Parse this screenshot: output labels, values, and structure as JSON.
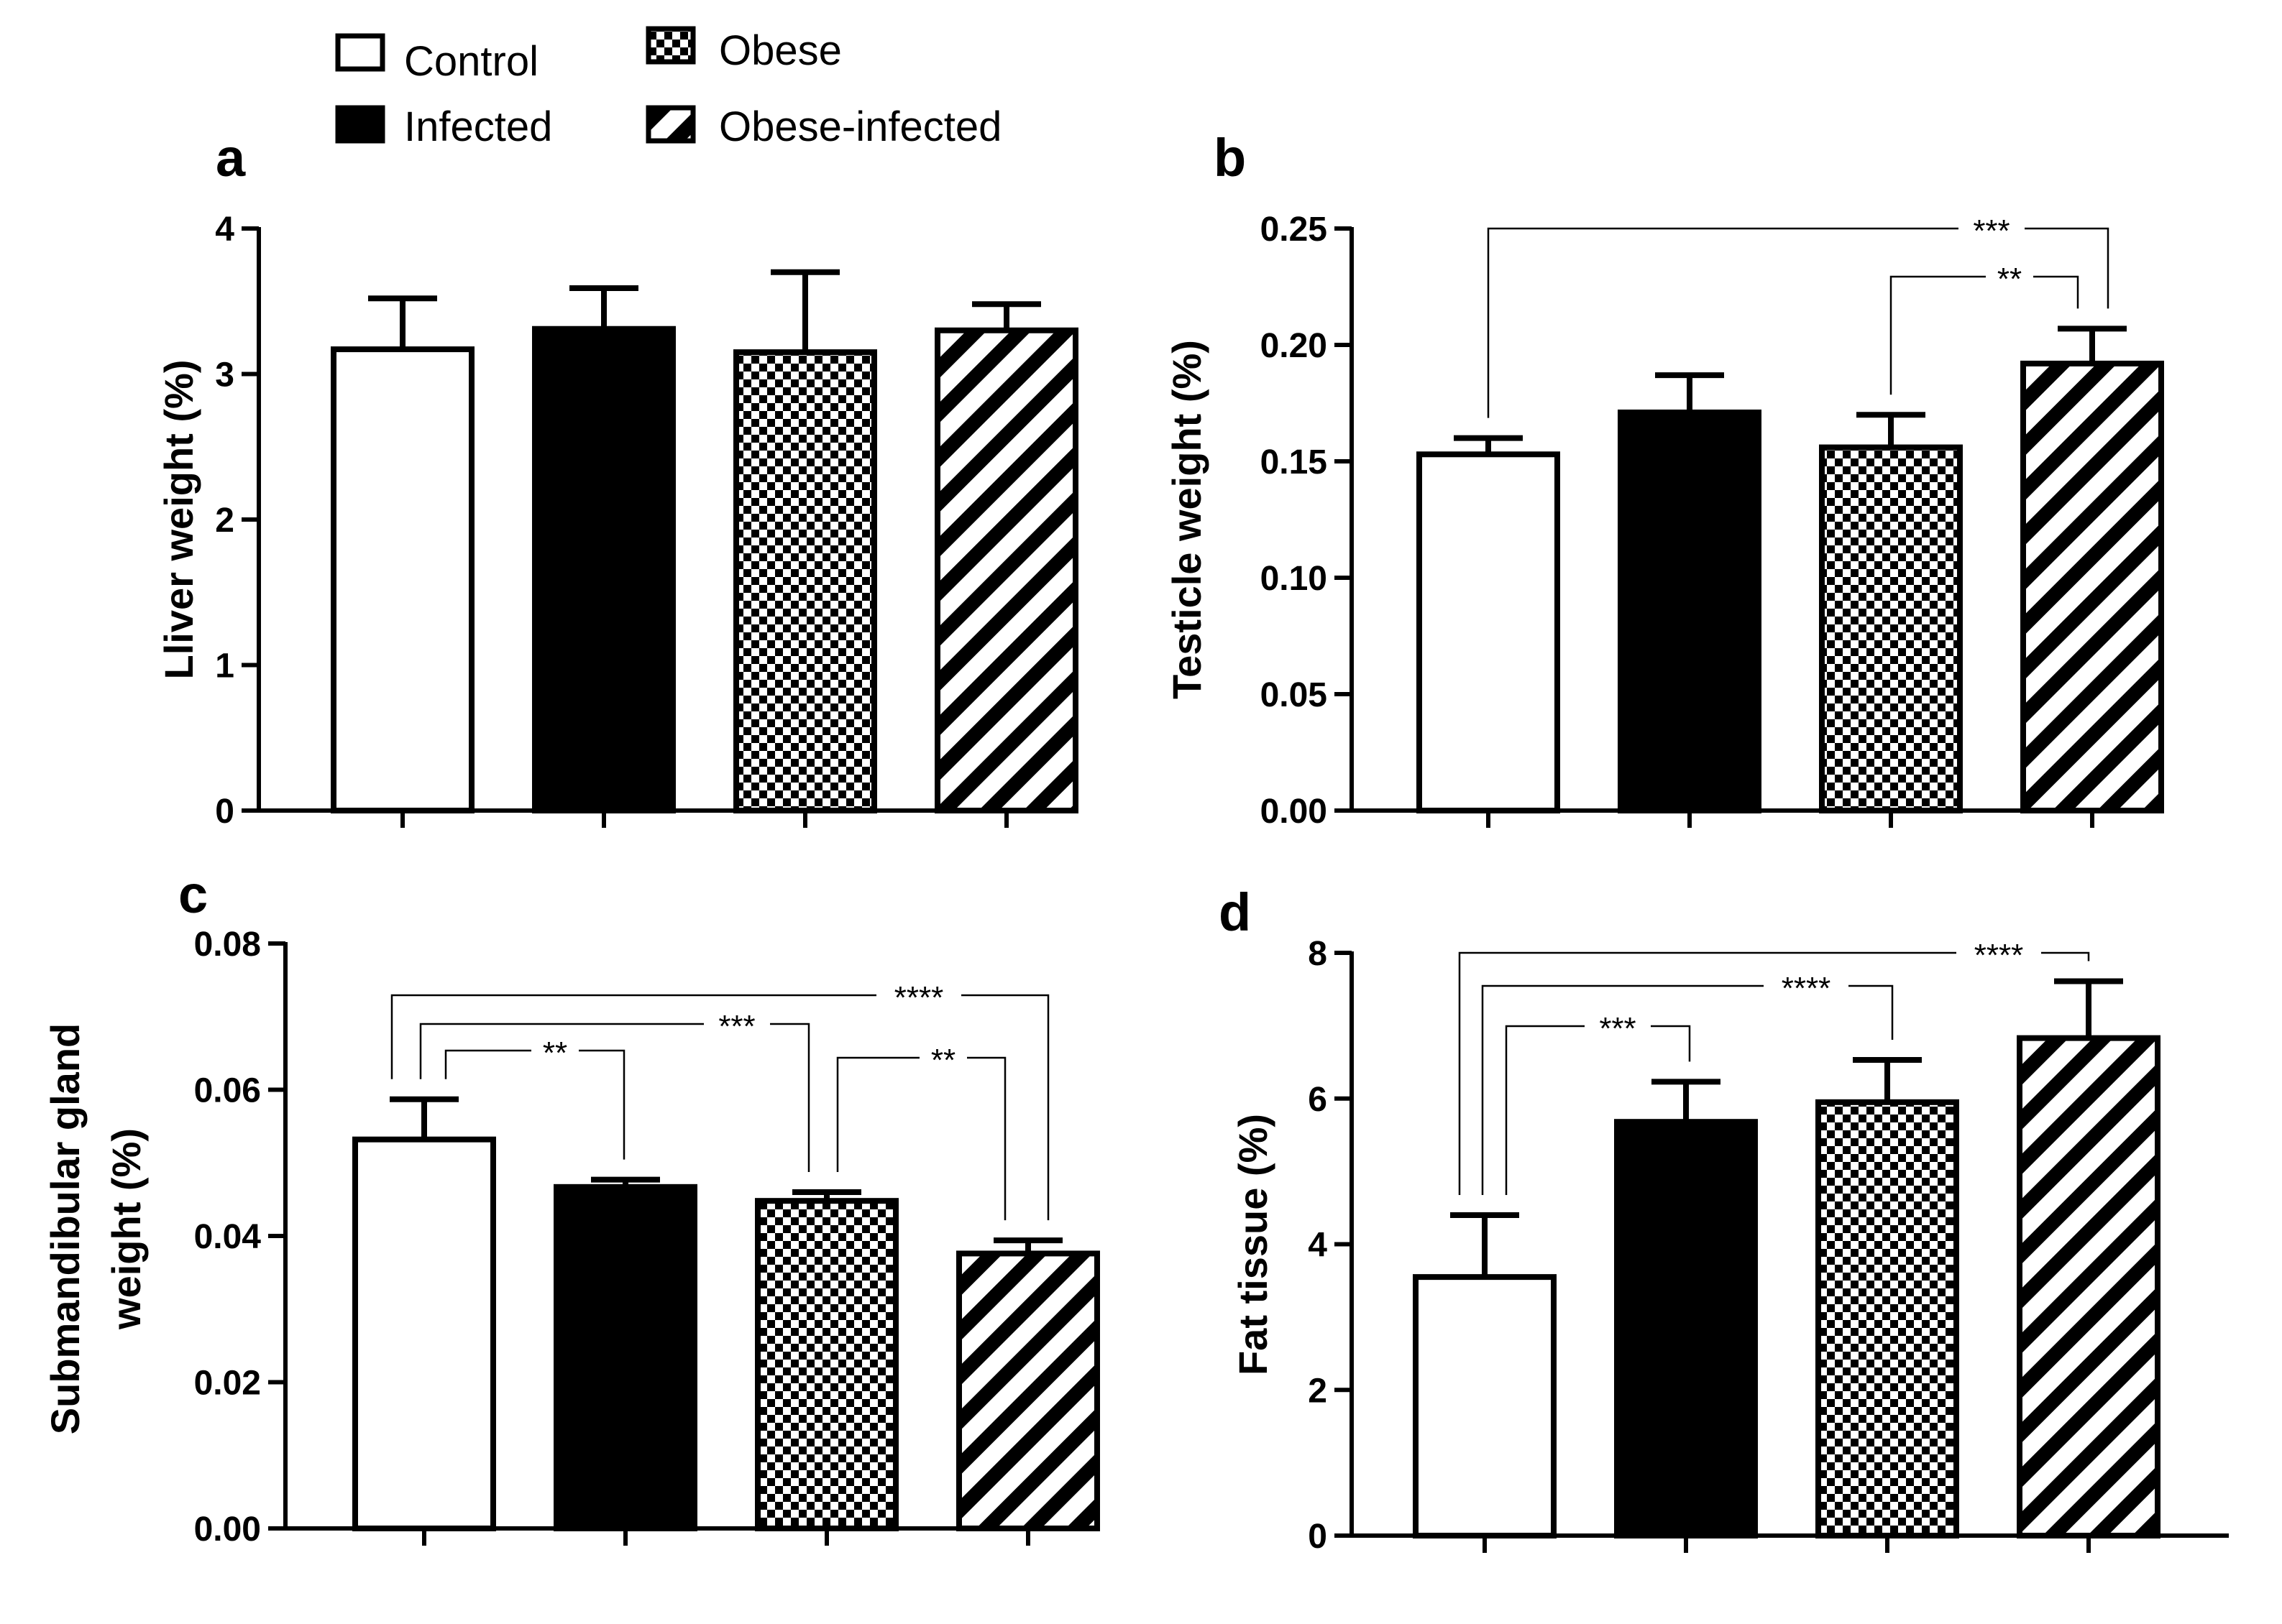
{
  "legend": {
    "entries": [
      {
        "label": "Control",
        "pattern": "white"
      },
      {
        "label": "Infected",
        "pattern": "solid"
      },
      {
        "label": "Obese",
        "pattern": "checker"
      },
      {
        "label": "Obese-infected",
        "pattern": "hatch"
      }
    ]
  },
  "colors": {
    "ink": "#000000",
    "paper": "#ffffff"
  },
  "chart_data": [
    {
      "id": "a",
      "type": "bar",
      "panel_label": "a",
      "title": "",
      "xlabel": "",
      "ylabel": "Lliver weight (%)",
      "categories": [
        "Control",
        "Infected",
        "Obese",
        "Obese-infected"
      ],
      "values": [
        3.17,
        3.31,
        3.15,
        3.3
      ],
      "errors": [
        0.35,
        0.28,
        0.55,
        0.18
      ],
      "ylim": [
        0,
        4
      ],
      "yticks": [
        0,
        1,
        2,
        3,
        4
      ],
      "ytick_labels": [
        "0",
        "1",
        "2",
        "3",
        "4"
      ],
      "grid": false,
      "legend": "top",
      "significance": []
    },
    {
      "id": "b",
      "type": "bar",
      "panel_label": "b",
      "title": "",
      "xlabel": "",
      "ylabel": "Testicle weight (%)",
      "categories": [
        "Control",
        "Infected",
        "Obese",
        "Obese-infected"
      ],
      "values": [
        0.153,
        0.171,
        0.156,
        0.192
      ],
      "errors": [
        0.007,
        0.016,
        0.014,
        0.015
      ],
      "ylim": [
        0,
        0.25
      ],
      "yticks": [
        0,
        0.05,
        0.1,
        0.15,
        0.2,
        0.25
      ],
      "ytick_labels": [
        "0.00",
        "0.05",
        "0.10",
        "0.15",
        "0.20",
        "0.25"
      ],
      "grid": false,
      "significance": [
        {
          "from": 0,
          "to": 3,
          "label": "***"
        },
        {
          "from": 2,
          "to": 3,
          "label": "**"
        }
      ]
    },
    {
      "id": "c",
      "type": "bar",
      "panel_label": "c",
      "title": "",
      "xlabel": "",
      "ylabel_lines": [
        "Submandibular gland",
        "weight (%)"
      ],
      "categories": [
        "Control",
        "Infected",
        "Obese",
        "Obese-infected"
      ],
      "values": [
        0.0532,
        0.0467,
        0.0448,
        0.0376
      ],
      "errors": [
        0.0055,
        0.001,
        0.0012,
        0.0018
      ],
      "ylim": [
        0,
        0.08
      ],
      "yticks": [
        0,
        0.02,
        0.04,
        0.06,
        0.08
      ],
      "ytick_labels": [
        "0.00",
        "0.02",
        "0.04",
        "0.06",
        "0.08"
      ],
      "grid": false,
      "significance": [
        {
          "from": 0,
          "to": 3,
          "label": "****"
        },
        {
          "from": 0,
          "to": 2,
          "label": "***"
        },
        {
          "from": 0,
          "to": 1,
          "label": "**"
        },
        {
          "from": 2,
          "to": 3,
          "label": "**"
        }
      ]
    },
    {
      "id": "d",
      "type": "bar",
      "panel_label": "d",
      "title": "",
      "xlabel": "",
      "ylabel": "Fat tissue (%)",
      "categories": [
        "Control",
        "Infected",
        "Obese",
        "Obese-infected"
      ],
      "values": [
        3.55,
        5.68,
        5.95,
        6.83
      ],
      "errors": [
        0.85,
        0.55,
        0.58,
        0.78
      ],
      "ylim": [
        0,
        8
      ],
      "yticks": [
        0,
        2,
        4,
        6,
        8
      ],
      "ytick_labels": [
        "0",
        "2",
        "4",
        "6",
        "8"
      ],
      "grid": false,
      "significance": [
        {
          "from": 0,
          "to": 3,
          "label": "****"
        },
        {
          "from": 0,
          "to": 2,
          "label": "****"
        },
        {
          "from": 0,
          "to": 1,
          "label": "***"
        }
      ]
    }
  ]
}
